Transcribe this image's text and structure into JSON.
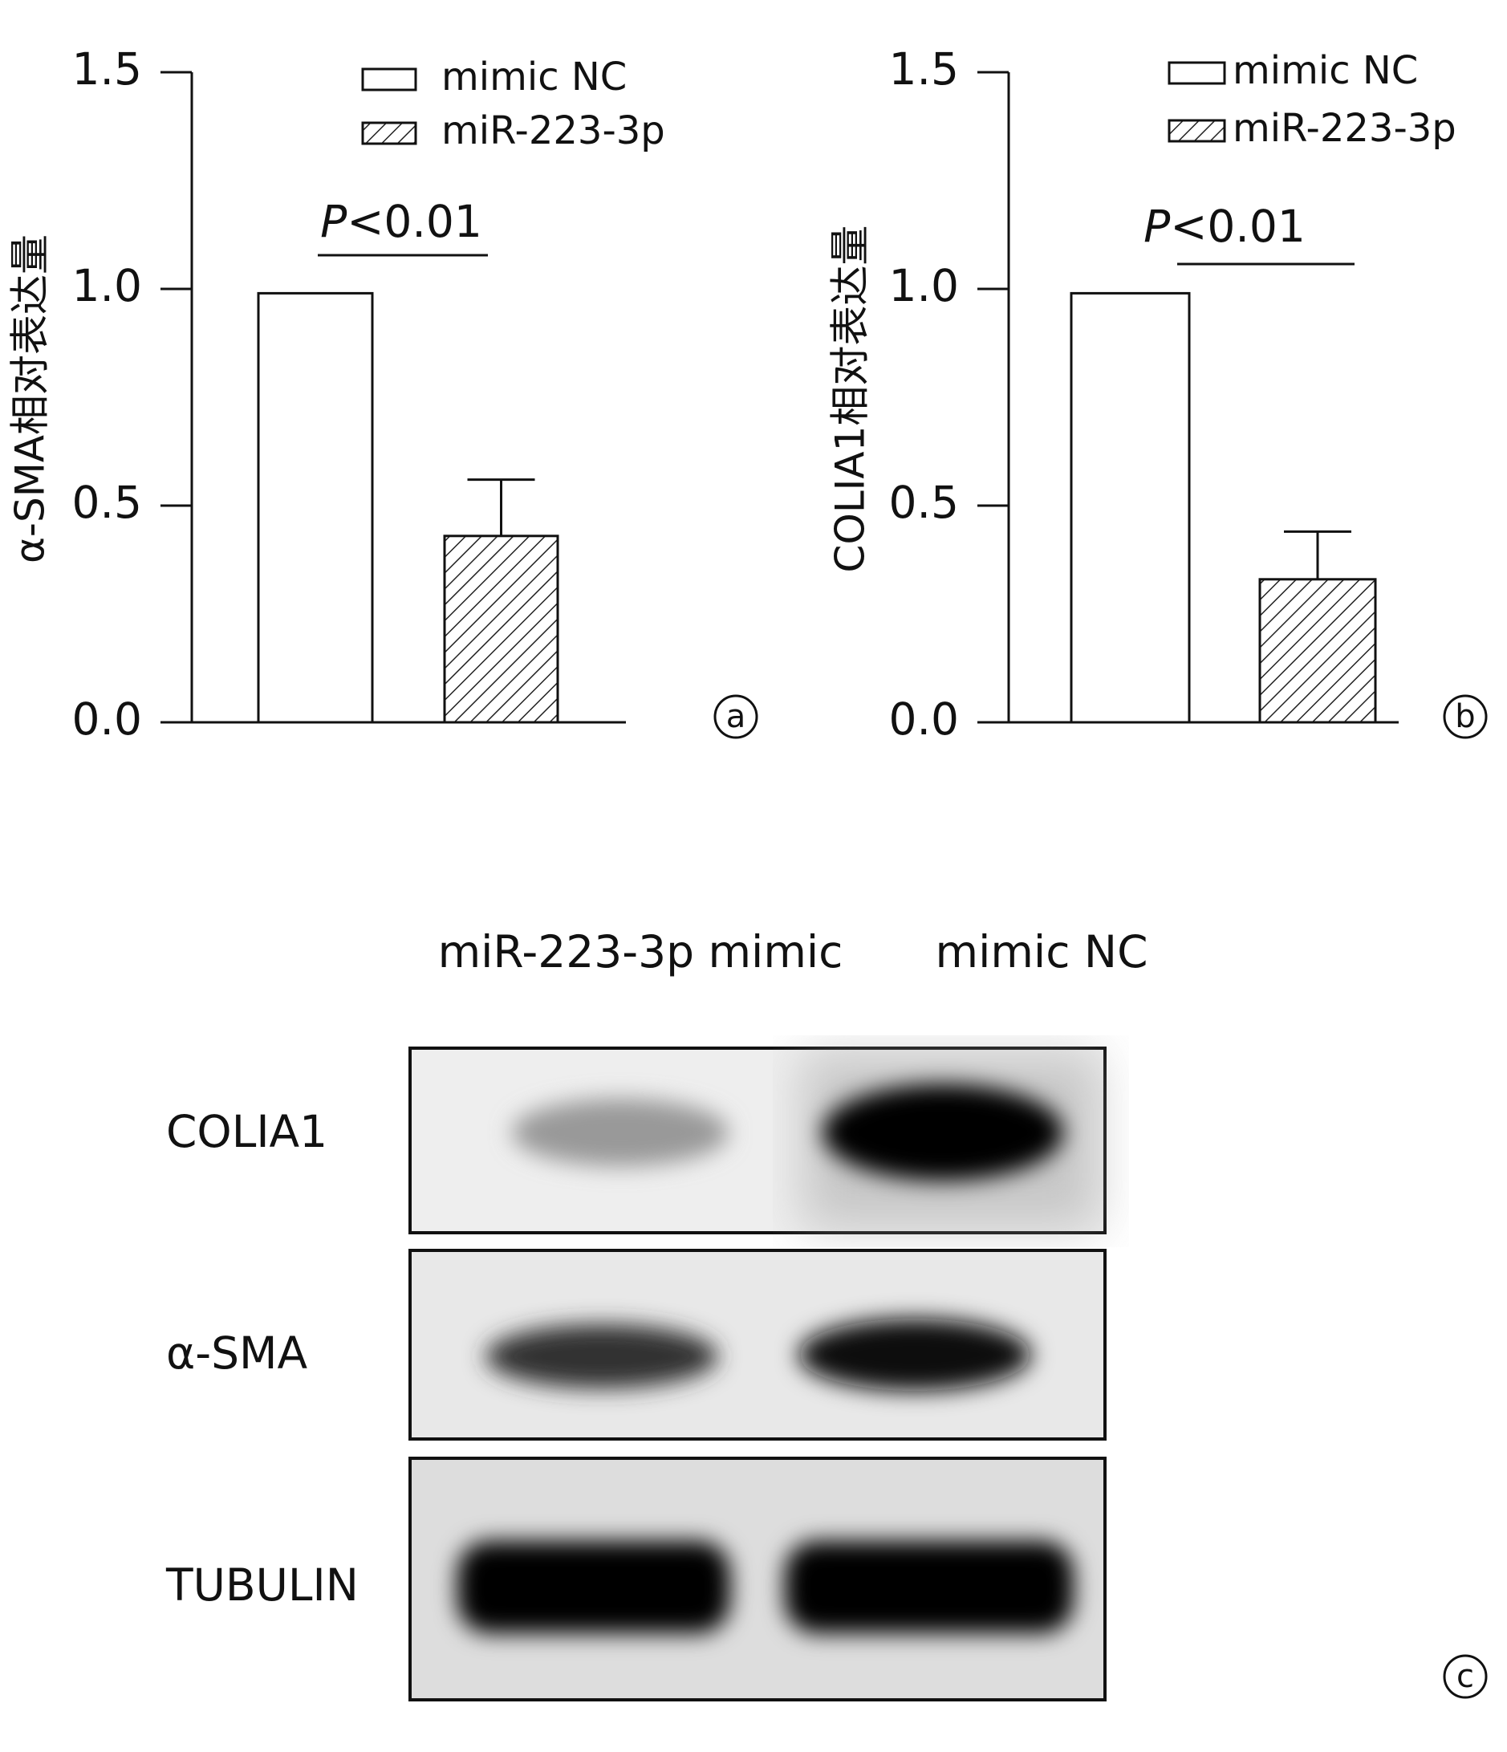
{
  "chart_data": [
    {
      "type": "bar",
      "y_label": "α-SMA相对表达量",
      "series": [
        {
          "name": "mimic NC",
          "color": "#ffffff",
          "pattern": "none",
          "values": [
            0.99
          ],
          "errors": [
            null
          ]
        },
        {
          "name": "miR-223-3p",
          "color": "#ffffff",
          "pattern": "hatch",
          "values": [
            0.43
          ],
          "errors": [
            0.13
          ]
        }
      ],
      "ylim": [
        0,
        1.5
      ],
      "yticks": [
        {
          "value": 0,
          "label": "0.0"
        },
        0.5,
        {
          "value": 1,
          "label": "1.0"
        },
        1.5
      ],
      "annotation": {
        "italic": "P",
        "text": "<0.01"
      },
      "panel_label": "a"
    },
    {
      "type": "bar",
      "y_label": "COLIA1相对表达量",
      "series": [
        {
          "name": "mimic NC",
          "color": "#ffffff",
          "pattern": "none",
          "values": [
            0.99
          ],
          "errors": [
            null
          ]
        },
        {
          "name": "miR-223-3p",
          "color": "#ffffff",
          "pattern": "hatch",
          "values": [
            0.33
          ],
          "errors": [
            0.11
          ]
        }
      ],
      "ylim": [
        0,
        1.5
      ],
      "yticks": [
        {
          "value": 0,
          "label": "0.0"
        },
        0.5,
        {
          "value": 1,
          "label": "1.0"
        },
        1.5
      ],
      "annotation": {
        "italic": "P",
        "text": "<0.01"
      },
      "panel_label": "b"
    }
  ],
  "blot": {
    "lanes": [
      "miR-223-3p mimic",
      "mimic NC"
    ],
    "rows": [
      "COLIA1",
      "α-SMA",
      "TUBULIN"
    ],
    "panel_label": "c"
  }
}
